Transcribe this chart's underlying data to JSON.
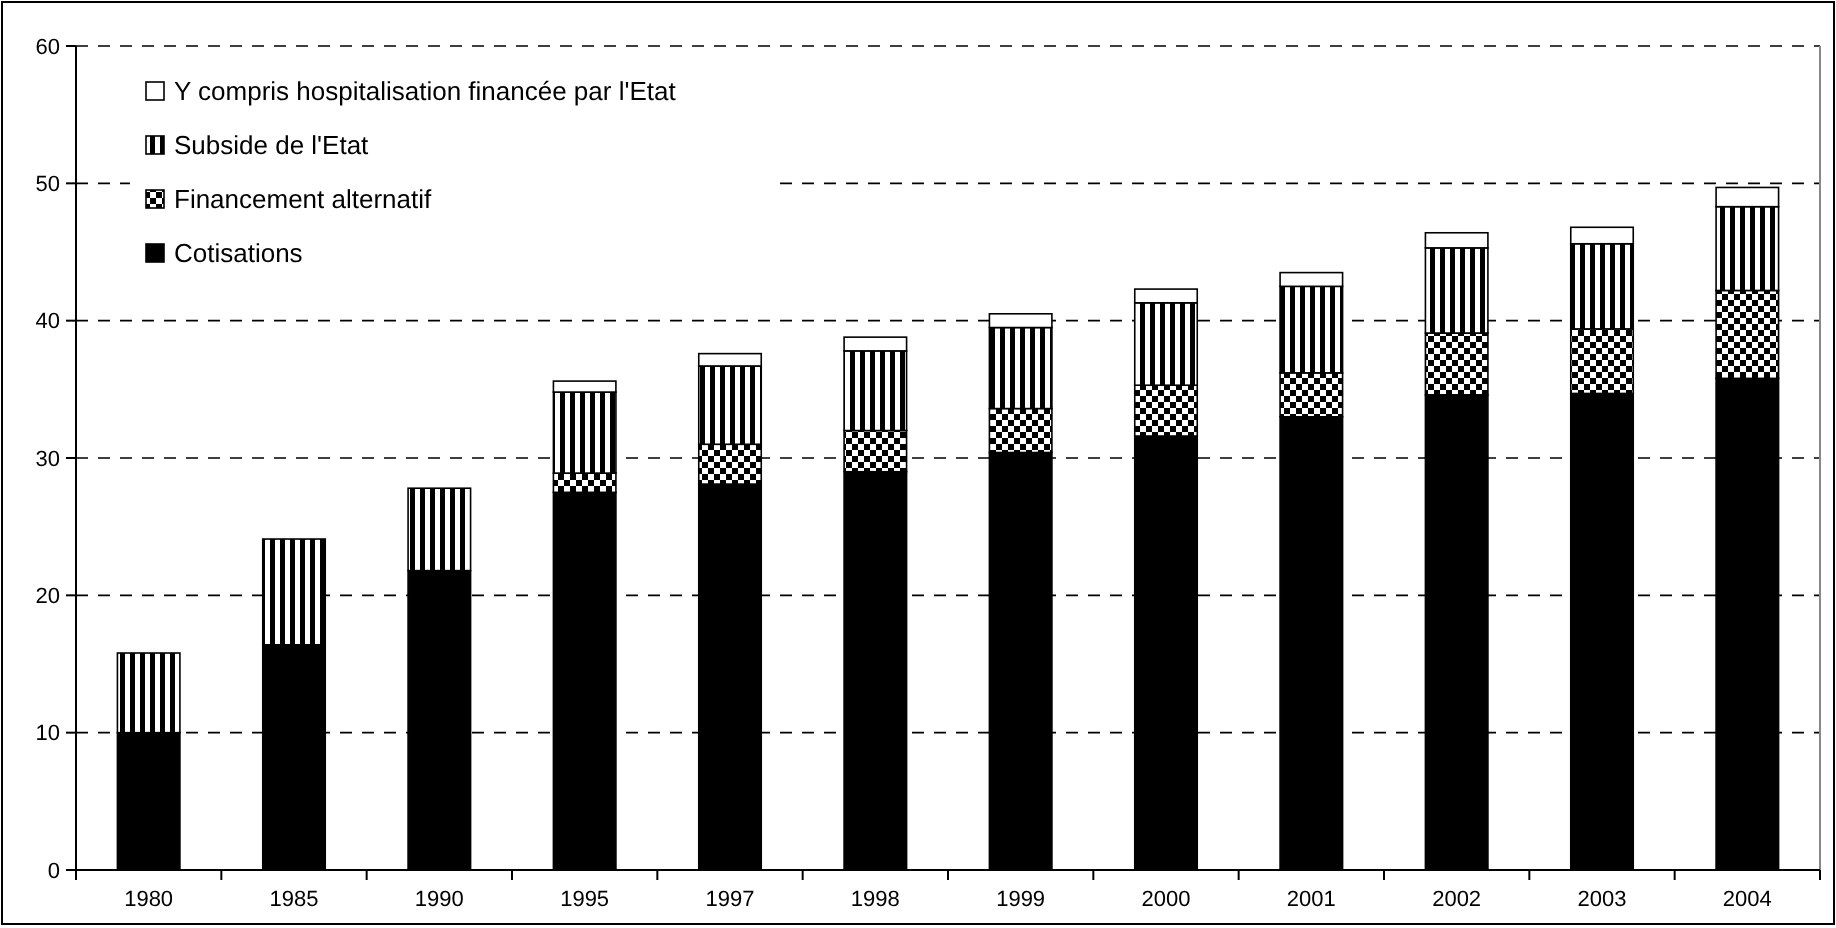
{
  "chart_data": {
    "type": "bar",
    "stacked": true,
    "categories": [
      "1980",
      "1985",
      "1990",
      "1995",
      "1997",
      "1998",
      "1999",
      "2000",
      "2001",
      "2002",
      "2003",
      "2004"
    ],
    "series": [
      {
        "name": "Cotisations",
        "color": "#000000",
        "values": [
          10.0,
          16.4,
          21.8,
          27.5,
          28.1,
          29.0,
          30.4,
          31.6,
          33.0,
          34.6,
          34.7,
          35.8
        ]
      },
      {
        "name": "Financement alternatif",
        "color": "#000000",
        "values": [
          null,
          null,
          null,
          1.4,
          2.9,
          3.0,
          3.2,
          3.7,
          3.2,
          4.5,
          4.7,
          6.4
        ]
      },
      {
        "name": "Subside de l'Etat",
        "color": "#000000",
        "values": [
          5.8,
          7.7,
          6.0,
          5.9,
          5.7,
          5.8,
          5.9,
          6.0,
          6.3,
          6.2,
          6.2,
          6.1
        ]
      },
      {
        "name": "Y compris hospitalisation financée par l'Etat",
        "color": "#ffffff",
        "values": [
          null,
          null,
          null,
          0.8,
          0.9,
          1.0,
          1.0,
          1.0,
          1.0,
          1.1,
          1.2,
          1.4
        ]
      }
    ],
    "ylim": [
      0,
      60
    ],
    "yticks": [
      0,
      10,
      20,
      30,
      40,
      50,
      60
    ],
    "grid": "y",
    "legend": "top left"
  }
}
